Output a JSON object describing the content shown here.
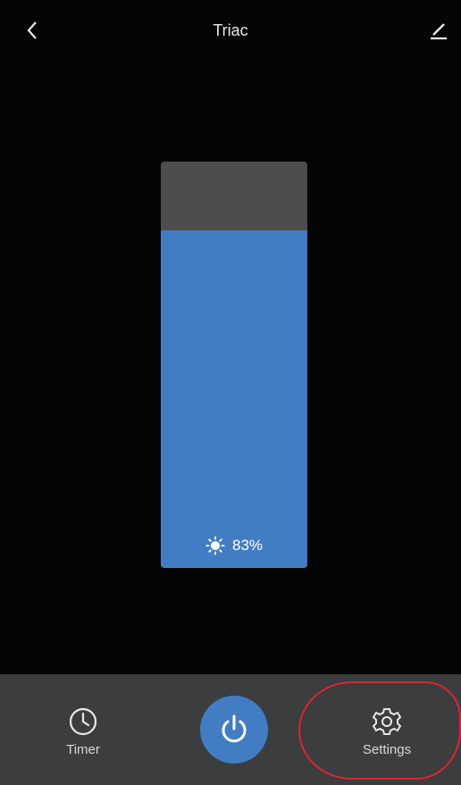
{
  "header": {
    "title": "Triac",
    "back_icon": "chevron-left-icon",
    "edit_icon": "edit-icon"
  },
  "brightness": {
    "level_percent": 83,
    "display": "83%",
    "icon": "sun-icon"
  },
  "bottom_bar": {
    "timer": {
      "label": "Timer",
      "icon": "clock-icon"
    },
    "power": {
      "icon": "power-icon"
    },
    "settings": {
      "label": "Settings",
      "icon": "gear-icon"
    }
  },
  "colors": {
    "background": "#050404",
    "accent": "#427dc4",
    "slider_track": "#4d4d4d",
    "bottom_bar": "#3b3d3e",
    "highlight": "#e0252a"
  }
}
